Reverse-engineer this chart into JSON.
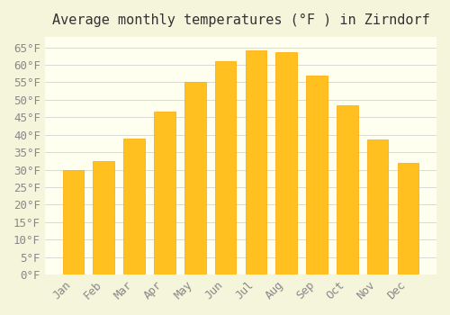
{
  "title": "Average monthly temperatures (°F ) in Zirndorf",
  "months": [
    "Jan",
    "Feb",
    "Mar",
    "Apr",
    "May",
    "Jun",
    "Jul",
    "Aug",
    "Sep",
    "Oct",
    "Nov",
    "Dec"
  ],
  "values": [
    30,
    32.5,
    39,
    46.5,
    55,
    61,
    64,
    63.5,
    57,
    48.5,
    38.5,
    32
  ],
  "bar_color": "#FFC020",
  "bar_edge_color": "#FFA500",
  "background_color": "#F5F5DC",
  "plot_background": "#FFFFF0",
  "grid_color": "#CCCCCC",
  "ylim": [
    0,
    68
  ],
  "yticks": [
    0,
    5,
    10,
    15,
    20,
    25,
    30,
    35,
    40,
    45,
    50,
    55,
    60,
    65
  ],
  "ytick_labels": [
    "0°F",
    "5°F",
    "10°F",
    "15°F",
    "20°F",
    "25°F",
    "30°F",
    "35°F",
    "40°F",
    "45°F",
    "50°F",
    "55°F",
    "60°F",
    "65°F"
  ],
  "title_fontsize": 11,
  "tick_fontsize": 9,
  "font_family": "monospace"
}
